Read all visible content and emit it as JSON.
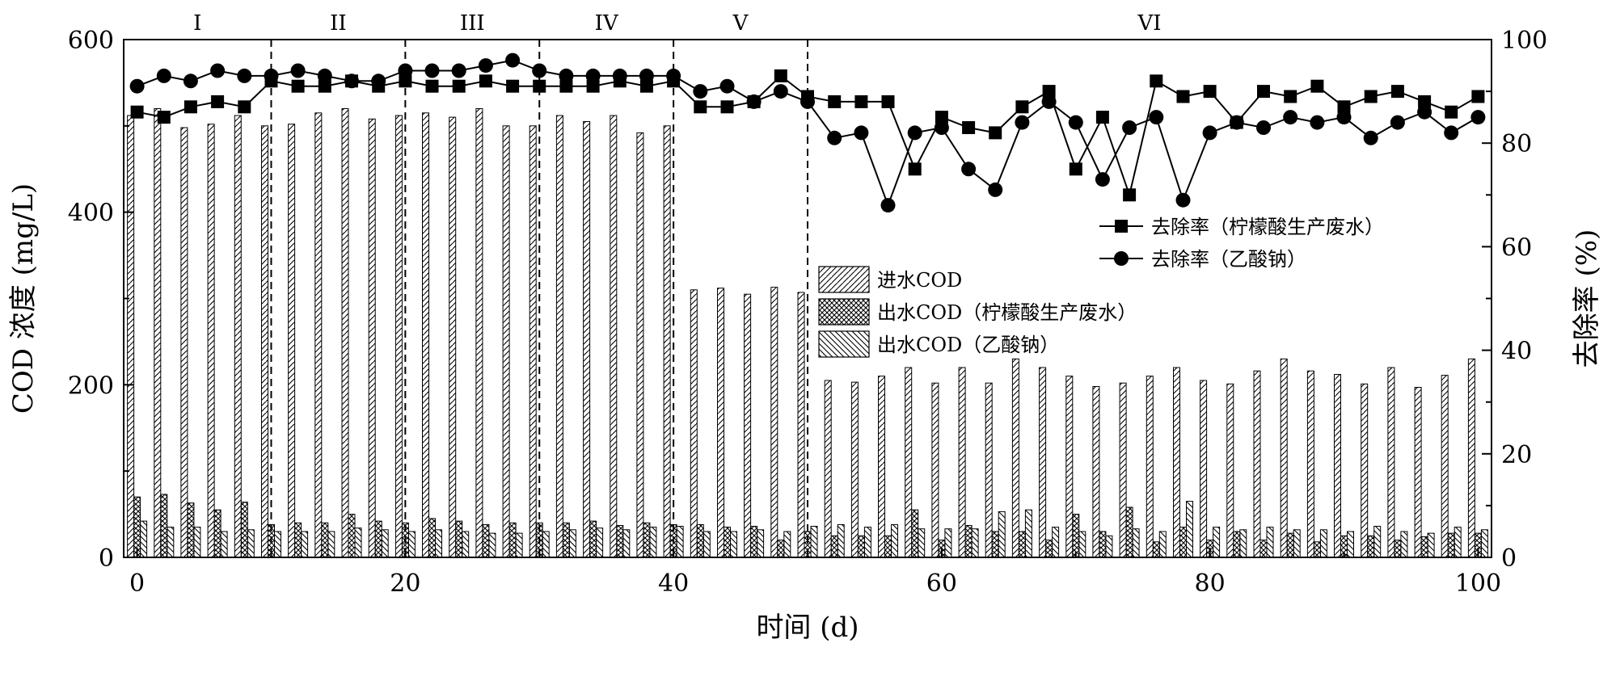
{
  "chart_data": {
    "type": "bar+line",
    "xlabel": "时间 (d)",
    "ylabel_left": "COD 浓度 (mg/L)",
    "ylabel_right": "去除率 (%)",
    "xlim": [
      -1,
      101
    ],
    "ylim_left": [
      0,
      600
    ],
    "ylim_right": [
      0,
      100
    ],
    "x_ticks": [
      0,
      20,
      40,
      60,
      80,
      100
    ],
    "y_ticks_left": [
      0,
      200,
      400,
      600
    ],
    "y_ticks_right": [
      0,
      20,
      40,
      60,
      80,
      100
    ],
    "stages": [
      {
        "label": "I",
        "start": -1,
        "end": 10
      },
      {
        "label": "II",
        "start": 10,
        "end": 20
      },
      {
        "label": "III",
        "start": 20,
        "end": 30
      },
      {
        "label": "IV",
        "start": 30,
        "end": 40
      },
      {
        "label": "V",
        "start": 40,
        "end": 50
      },
      {
        "label": "VI",
        "start": 50,
        "end": 101
      }
    ],
    "stage_boundaries": [
      10,
      20,
      30,
      40,
      50
    ],
    "bar_legend": [
      {
        "key": "influent",
        "label": "进水COD"
      },
      {
        "key": "effluent_citric",
        "label": "出水COD（柠檬酸生产废水）"
      },
      {
        "key": "effluent_acetate",
        "label": "出水COD（乙酸钠）"
      }
    ],
    "line_legend": [
      {
        "key": "removal_citric",
        "label": "去除率（柠檬酸生产废水）",
        "marker": "square"
      },
      {
        "key": "removal_acetate",
        "label": "去除率（乙酸钠）",
        "marker": "circle"
      }
    ],
    "x": [
      0,
      2,
      4,
      6,
      8,
      10,
      12,
      14,
      16,
      18,
      20,
      22,
      24,
      26,
      28,
      30,
      32,
      34,
      36,
      38,
      40,
      42,
      44,
      46,
      48,
      50,
      52,
      54,
      56,
      58,
      60,
      62,
      64,
      66,
      68,
      70,
      72,
      74,
      76,
      78,
      80,
      82,
      84,
      86,
      88,
      90,
      92,
      94,
      96,
      98,
      100
    ],
    "series": [
      {
        "key": "influent",
        "values": [
          512,
          520,
          498,
          502,
          512,
          500,
          502,
          515,
          520,
          508,
          512,
          515,
          510,
          520,
          500,
          500,
          512,
          505,
          512,
          492,
          500,
          310,
          312,
          305,
          313,
          307,
          205,
          203,
          210,
          220,
          202,
          220,
          202,
          230,
          220,
          210,
          198,
          202,
          210,
          220,
          205,
          201,
          216,
          230,
          216,
          212,
          201,
          220,
          197,
          211,
          230
        ]
      },
      {
        "key": "effluent_citric",
        "values": [
          70,
          73,
          63,
          55,
          64,
          38,
          40,
          40,
          50,
          42,
          40,
          45,
          42,
          38,
          40,
          40,
          40,
          42,
          37,
          40,
          38,
          38,
          35,
          36,
          20,
          30,
          25,
          25,
          25,
          55,
          20,
          37,
          30,
          30,
          20,
          50,
          30,
          58,
          18,
          35,
          20,
          30,
          20,
          28,
          18,
          25,
          25,
          20,
          24,
          28,
          28
        ]
      },
      {
        "key": "effluent_acetate",
        "values": [
          42,
          35,
          35,
          30,
          32,
          30,
          30,
          30,
          34,
          32,
          30,
          32,
          30,
          28,
          28,
          30,
          32,
          34,
          32,
          35,
          36,
          30,
          30,
          32,
          30,
          36,
          38,
          35,
          38,
          33,
          33,
          33,
          53,
          55,
          35,
          30,
          25,
          33,
          30,
          65,
          35,
          32,
          35,
          32,
          32,
          30,
          36,
          30,
          28,
          35,
          32
        ]
      },
      {
        "key": "removal_citric",
        "values": [
          86,
          85,
          87,
          88,
          87,
          92,
          91,
          91,
          92,
          91,
          92,
          91,
          91,
          92,
          91,
          91,
          91,
          91,
          92,
          91,
          92,
          87,
          87,
          88,
          93,
          89,
          88,
          88,
          88,
          75,
          85,
          83,
          82,
          87,
          90,
          75,
          85,
          70,
          92,
          89,
          90,
          84,
          90,
          89,
          91,
          87,
          89,
          90,
          88,
          86,
          89
        ]
      },
      {
        "key": "removal_acetate",
        "values": [
          91,
          93,
          92,
          94,
          93,
          93,
          94,
          93,
          92,
          92,
          94,
          94,
          94,
          95,
          96,
          94,
          93,
          93,
          93,
          93,
          93,
          90,
          91,
          88,
          90,
          88,
          81,
          82,
          68,
          82,
          83,
          75,
          71,
          84,
          88,
          84,
          73,
          83,
          85,
          69,
          82,
          84,
          83,
          85,
          84,
          85,
          81,
          84,
          86,
          82,
          85
        ]
      }
    ],
    "colors": {
      "ink": "#000000",
      "background": "#ffffff"
    }
  }
}
